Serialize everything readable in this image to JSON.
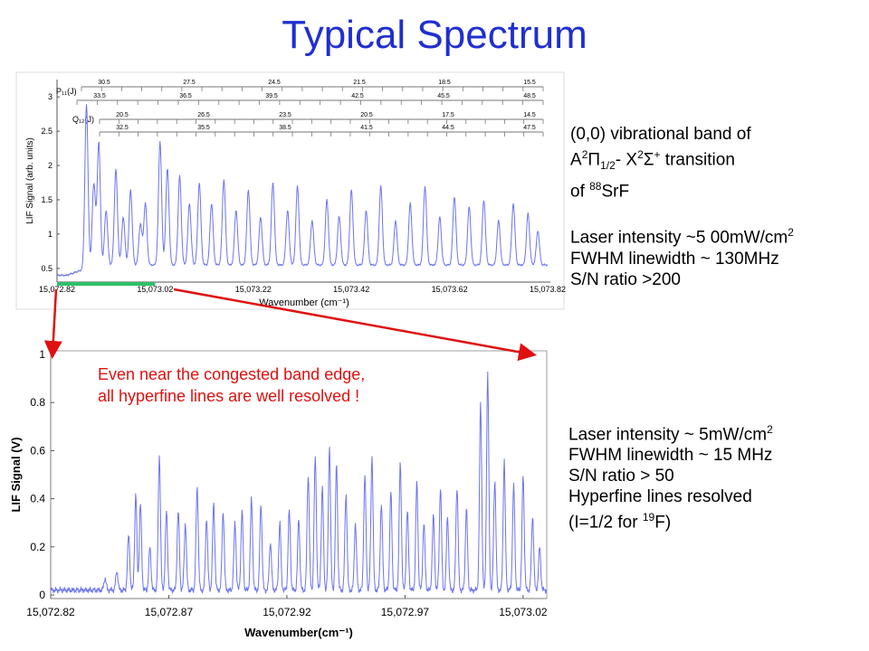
{
  "title": "Typical Spectrum",
  "annotation": {
    "line1": "Even near the congested band edge,",
    "line2": "all hyperfine lines are well resolved !"
  },
  "info_top": {
    "band_l1a": "(0,0) vibrational band of",
    "band_A": "A",
    "band_A_sup": "2",
    "band_Pi": "Π",
    "band_Pi_sub": "1/2",
    "band_X": "- X",
    "band_X_sup": "2",
    "band_Sigma": "Σ",
    "band_Sigma_sup": "+",
    "band_tail": " transition",
    "band_of": "of ",
    "band_iso": "88",
    "band_mol": "SrF",
    "intensity": "Laser intensity ~5 00mW/cm",
    "intensity_sup": "2",
    "fwhm": "FWHM linewidth ~ 130MHz",
    "sn": "S/N ratio >200"
  },
  "info_bottom": {
    "intensity": "Laser intensity ~ 5mW/cm",
    "intensity_sup": "2",
    "fwhm": "FWHM linewidth ~ 15 MHz",
    "sn": "S/N ratio > 50",
    "hyperfine": "Hyperfine lines resolved",
    "spin_a": "(I=1/2 for ",
    "spin_sup": "19",
    "spin_b": "F)"
  },
  "colors": {
    "title": "#1f2fd0",
    "trace": "#6c74f0",
    "annotation": "#e01010",
    "arrow": "#e01010",
    "highlight": "#2ec06a"
  },
  "chart_data": [
    {
      "type": "line",
      "xlabel": "Wavenumber (cm⁻¹)",
      "ylabel": "LIF Signal (arb. units)",
      "xticks": [
        "15,072.82",
        "15,073.02",
        "15,073.22",
        "15,073.42",
        "15,073.62",
        "15,073.82"
      ],
      "xlim": [
        15072.82,
        15073.82
      ],
      "yticks": [
        "0.5",
        "1",
        "1.5",
        "2",
        "2.5",
        "3"
      ],
      "ylim": [
        0.3,
        3.2
      ],
      "baseline": 0.4,
      "band_edge": 15072.9,
      "highlight_range": [
        15072.82,
        15073.02
      ],
      "branch_labels": [
        "P₁₁(J)",
        "Q₁₂(J)"
      ],
      "ladder_rows": [
        {
          "labels": [
            "30.5",
            "27.5",
            "24.5",
            "21.5",
            "18.5",
            "15.5"
          ]
        },
        {
          "labels": [
            "33.5",
            "36.5",
            "39.5",
            "42.5",
            "45.5",
            "48.5"
          ]
        },
        {
          "labels": [
            "20.5",
            "26.5",
            "23.5",
            "20.5",
            "17.5",
            "14.5"
          ]
        },
        {
          "labels": [
            "32.5",
            "35.5",
            "38.5",
            "41.5",
            "44.5",
            "47.5"
          ]
        }
      ],
      "peaks": [
        {
          "x": 15072.88,
          "y": 2.8
        },
        {
          "x": 15072.895,
          "y": 1.6
        },
        {
          "x": 15072.905,
          "y": 2.2
        },
        {
          "x": 15072.92,
          "y": 1.2
        },
        {
          "x": 15072.94,
          "y": 1.8
        },
        {
          "x": 15072.955,
          "y": 1.1
        },
        {
          "x": 15072.97,
          "y": 1.5
        },
        {
          "x": 15072.99,
          "y": 1.0
        },
        {
          "x": 15073.0,
          "y": 1.3
        },
        {
          "x": 15073.03,
          "y": 2.2
        },
        {
          "x": 15073.045,
          "y": 1.8
        },
        {
          "x": 15073.07,
          "y": 1.7
        },
        {
          "x": 15073.09,
          "y": 1.3
        },
        {
          "x": 15073.11,
          "y": 1.6
        },
        {
          "x": 15073.135,
          "y": 1.3
        },
        {
          "x": 15073.16,
          "y": 1.65
        },
        {
          "x": 15073.185,
          "y": 1.2
        },
        {
          "x": 15073.21,
          "y": 1.5
        },
        {
          "x": 15073.235,
          "y": 1.1
        },
        {
          "x": 15073.26,
          "y": 1.6
        },
        {
          "x": 15073.29,
          "y": 1.2
        },
        {
          "x": 15073.31,
          "y": 1.55
        },
        {
          "x": 15073.34,
          "y": 1.05
        },
        {
          "x": 15073.37,
          "y": 1.35
        },
        {
          "x": 15073.395,
          "y": 1.1
        },
        {
          "x": 15073.42,
          "y": 1.5
        },
        {
          "x": 15073.45,
          "y": 1.2
        },
        {
          "x": 15073.48,
          "y": 1.55
        },
        {
          "x": 15073.51,
          "y": 1.05
        },
        {
          "x": 15073.54,
          "y": 1.3
        },
        {
          "x": 15073.57,
          "y": 1.55
        },
        {
          "x": 15073.6,
          "y": 1.1
        },
        {
          "x": 15073.63,
          "y": 1.4
        },
        {
          "x": 15073.66,
          "y": 1.25
        },
        {
          "x": 15073.69,
          "y": 1.35
        },
        {
          "x": 15073.72,
          "y": 1.05
        },
        {
          "x": 15073.75,
          "y": 1.3
        },
        {
          "x": 15073.78,
          "y": 1.15
        },
        {
          "x": 15073.8,
          "y": 0.9
        }
      ]
    },
    {
      "type": "line",
      "xlabel": "Wavenumber(cm⁻¹)",
      "ylabel": "LIF Signal (V)",
      "xticks": [
        "15,072.82",
        "15,072.87",
        "15,072.92",
        "15,072.97",
        "15,073.02"
      ],
      "xlim": [
        15072.82,
        15073.03
      ],
      "yticks": [
        "0",
        "0.2",
        "0.4",
        "0.6",
        "0.8",
        "1"
      ],
      "ylim": [
        0,
        1
      ],
      "baseline": 0.02,
      "peaks": [
        {
          "x": 15072.843,
          "y": 0.07
        },
        {
          "x": 15072.848,
          "y": 0.1
        },
        {
          "x": 15072.853,
          "y": 0.25
        },
        {
          "x": 15072.856,
          "y": 0.42
        },
        {
          "x": 15072.858,
          "y": 0.38
        },
        {
          "x": 15072.862,
          "y": 0.2
        },
        {
          "x": 15072.866,
          "y": 0.58
        },
        {
          "x": 15072.869,
          "y": 0.35
        },
        {
          "x": 15072.874,
          "y": 0.35
        },
        {
          "x": 15072.877,
          "y": 0.3
        },
        {
          "x": 15072.882,
          "y": 0.45
        },
        {
          "x": 15072.886,
          "y": 0.32
        },
        {
          "x": 15072.889,
          "y": 0.38
        },
        {
          "x": 15072.893,
          "y": 0.35
        },
        {
          "x": 15072.898,
          "y": 0.3
        },
        {
          "x": 15072.901,
          "y": 0.35
        },
        {
          "x": 15072.905,
          "y": 0.4
        },
        {
          "x": 15072.909,
          "y": 0.38
        },
        {
          "x": 15072.913,
          "y": 0.22
        },
        {
          "x": 15072.917,
          "y": 0.3
        },
        {
          "x": 15072.921,
          "y": 0.35
        },
        {
          "x": 15072.925,
          "y": 0.32
        },
        {
          "x": 15072.929,
          "y": 0.5
        },
        {
          "x": 15072.932,
          "y": 0.58
        },
        {
          "x": 15072.935,
          "y": 0.45
        },
        {
          "x": 15072.938,
          "y": 0.62
        },
        {
          "x": 15072.941,
          "y": 0.55
        },
        {
          "x": 15072.945,
          "y": 0.42
        },
        {
          "x": 15072.949,
          "y": 0.3
        },
        {
          "x": 15072.953,
          "y": 0.5
        },
        {
          "x": 15072.956,
          "y": 0.58
        },
        {
          "x": 15072.96,
          "y": 0.38
        },
        {
          "x": 15072.964,
          "y": 0.43
        },
        {
          "x": 15072.968,
          "y": 0.55
        },
        {
          "x": 15072.971,
          "y": 0.35
        },
        {
          "x": 15072.975,
          "y": 0.47
        },
        {
          "x": 15072.978,
          "y": 0.3
        },
        {
          "x": 15072.982,
          "y": 0.33
        },
        {
          "x": 15072.985,
          "y": 0.45
        },
        {
          "x": 15072.988,
          "y": 0.33
        },
        {
          "x": 15072.992,
          "y": 0.45
        },
        {
          "x": 15072.996,
          "y": 0.36
        },
        {
          "x": 15073.002,
          "y": 0.8
        },
        {
          "x": 15073.005,
          "y": 0.92
        },
        {
          "x": 15073.008,
          "y": 0.48
        },
        {
          "x": 15073.012,
          "y": 0.56
        },
        {
          "x": 15073.016,
          "y": 0.46
        },
        {
          "x": 15073.02,
          "y": 0.5
        },
        {
          "x": 15073.024,
          "y": 0.33
        },
        {
          "x": 15073.027,
          "y": 0.2
        }
      ]
    }
  ]
}
